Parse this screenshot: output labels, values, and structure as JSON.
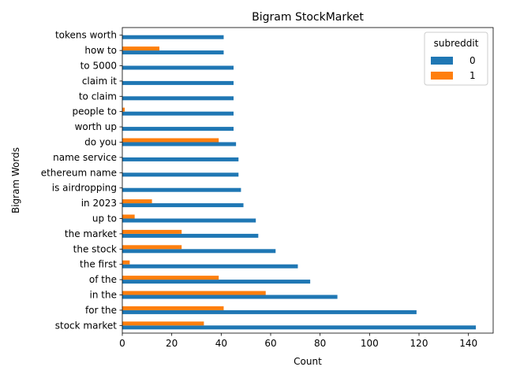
{
  "chart_data": {
    "type": "bar",
    "orientation": "horizontal",
    "title": "Bigram StockMarket",
    "xlabel": "Count",
    "ylabel": "Bigram Words",
    "xlim": [
      0,
      150
    ],
    "xticks": [
      0,
      20,
      40,
      60,
      80,
      100,
      120,
      140
    ],
    "grid": false,
    "legend_title": "subreddit",
    "legend_placement": "top-right",
    "categories": [
      "stock market",
      "for the",
      "in the",
      "of the",
      "the first",
      "the stock",
      "the market",
      "up to",
      "in 2023",
      "is airdropping",
      "ethereum name",
      "name service",
      "do you",
      "worth up",
      "people to",
      "to claim",
      "claim it",
      "to 5000",
      "how to",
      "tokens worth"
    ],
    "series": [
      {
        "name": "0",
        "color": "#1f77b4",
        "values": [
          143,
          119,
          87,
          76,
          71,
          62,
          55,
          54,
          49,
          48,
          47,
          47,
          46,
          45,
          45,
          45,
          45,
          45,
          41,
          41
        ]
      },
      {
        "name": "1",
        "color": "#ff7f0e",
        "values": [
          33,
          41,
          58,
          39,
          3,
          24,
          24,
          5,
          12,
          0,
          0,
          0,
          39,
          0,
          1,
          0,
          0,
          0,
          15,
          0
        ]
      }
    ]
  }
}
